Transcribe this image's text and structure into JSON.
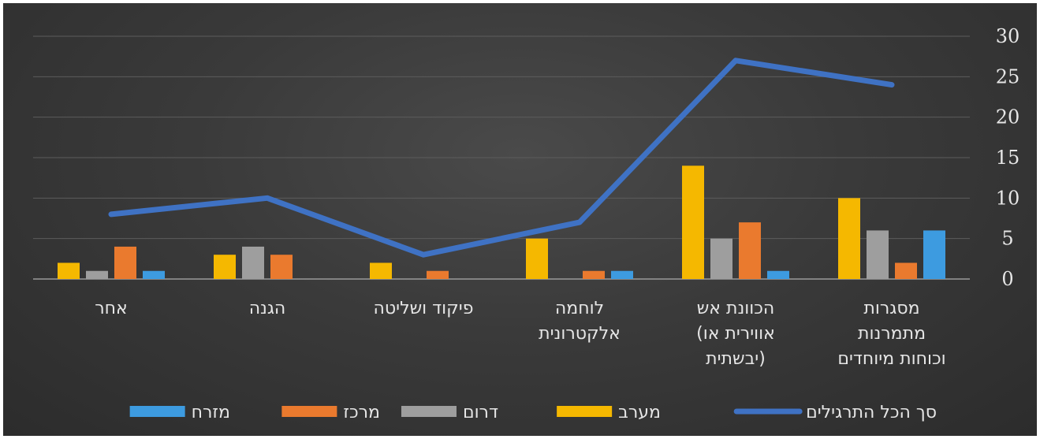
{
  "chart_data": {
    "type": "bar+line",
    "categories": [
      [
        "מסגרות",
        "מתמרנות",
        "וכוחות מיוחדים"
      ],
      [
        "הכוונת אש",
        "(אווירית או",
        "יבשתית)"
      ],
      [
        "לוחמה",
        "אלקטרונית"
      ],
      [
        "פיקוד ושליטה"
      ],
      [
        "הגנה"
      ],
      [
        "אחר"
      ]
    ],
    "series": [
      {
        "name": "מערב",
        "type": "bar",
        "color": "#f5b800",
        "values": [
          10,
          14,
          5,
          2,
          3,
          2
        ]
      },
      {
        "name": "דרום",
        "type": "bar",
        "color": "#9e9e9e",
        "values": [
          6,
          5,
          0,
          0,
          4,
          1
        ]
      },
      {
        "name": "מרכז",
        "type": "bar",
        "color": "#ea7a2e",
        "values": [
          2,
          7,
          1,
          1,
          3,
          4
        ]
      },
      {
        "name": "מזרח",
        "type": "bar",
        "color": "#3d9be0",
        "values": [
          6,
          1,
          1,
          0,
          0,
          1
        ]
      },
      {
        "name": "סך הכל התרגילים",
        "type": "line",
        "color": "#3f72c4",
        "values": [
          24,
          27,
          7,
          3,
          10,
          8
        ]
      }
    ],
    "yticks": [
      0,
      5,
      10,
      15,
      20,
      25,
      30
    ],
    "ylim": [
      0,
      30
    ],
    "y_axis_side": "right",
    "category_order": "right-to-left",
    "grid": true,
    "legend_position": "bottom"
  }
}
